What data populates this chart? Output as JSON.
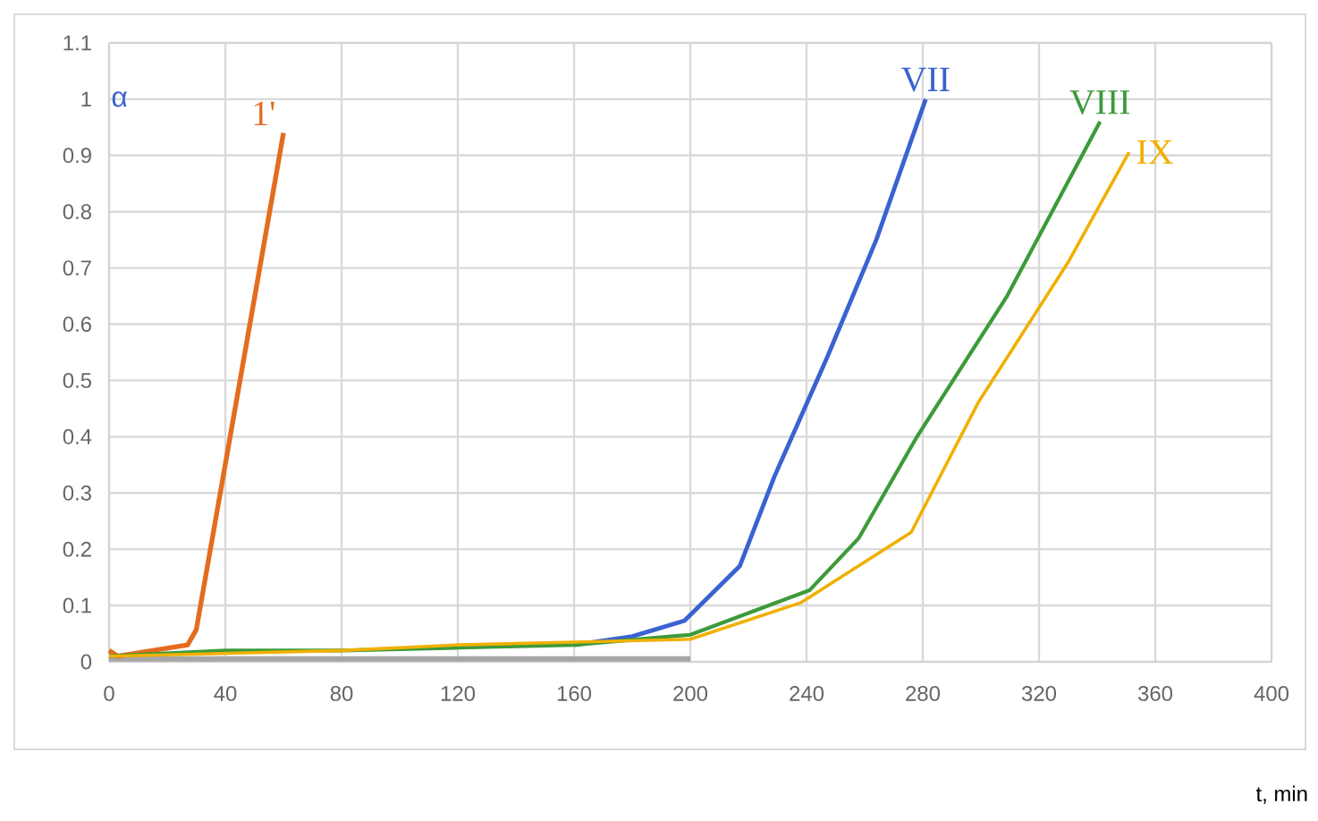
{
  "chart_data": {
    "type": "line",
    "xlabel": "t, min",
    "ylabel": "α",
    "xlim": [
      0,
      400
    ],
    "xticks": [
      0,
      40,
      80,
      120,
      160,
      200,
      240,
      280,
      320,
      360,
      400
    ],
    "ylim": [
      0,
      1.1
    ],
    "yticks": [
      0,
      0.1,
      0.2,
      0.3,
      0.4,
      0.5,
      0.6,
      0.7,
      0.8,
      0.9,
      1,
      1.1
    ],
    "grid": true,
    "legend": false,
    "marker": "none",
    "line_style": "solid",
    "series": [
      {
        "color": "#a6a6a6",
        "x": [
          0,
          100,
          200
        ],
        "values": [
          0.005,
          0.005,
          0.005
        ]
      },
      {
        "name": "1'",
        "color": "#e36c1e",
        "x": [
          0,
          3,
          27,
          30,
          60
        ],
        "values": [
          0.02,
          0.01,
          0.03,
          0.057,
          0.94
        ]
      },
      {
        "name": "VII",
        "color": "#3a62d0",
        "x": [
          160,
          180,
          198,
          217,
          229,
          247,
          264,
          281
        ],
        "values": [
          0.03,
          0.045,
          0.073,
          0.17,
          0.33,
          0.54,
          0.75,
          1.0
        ]
      },
      {
        "name": "VIII",
        "color": "#3c9a3a",
        "x": [
          0,
          40,
          80,
          120,
          160,
          200,
          241,
          258,
          278,
          309,
          341
        ],
        "values": [
          0.01,
          0.02,
          0.02,
          0.025,
          0.03,
          0.048,
          0.127,
          0.22,
          0.4,
          0.65,
          0.96
        ]
      },
      {
        "name": "IX",
        "color": "#f0b000",
        "x": [
          0,
          40,
          80,
          120,
          160,
          200,
          238,
          276,
          299,
          330,
          351
        ],
        "values": [
          0.01,
          0.015,
          0.02,
          0.03,
          0.035,
          0.04,
          0.105,
          0.23,
          0.46,
          0.71,
          0.906
        ]
      }
    ]
  }
}
